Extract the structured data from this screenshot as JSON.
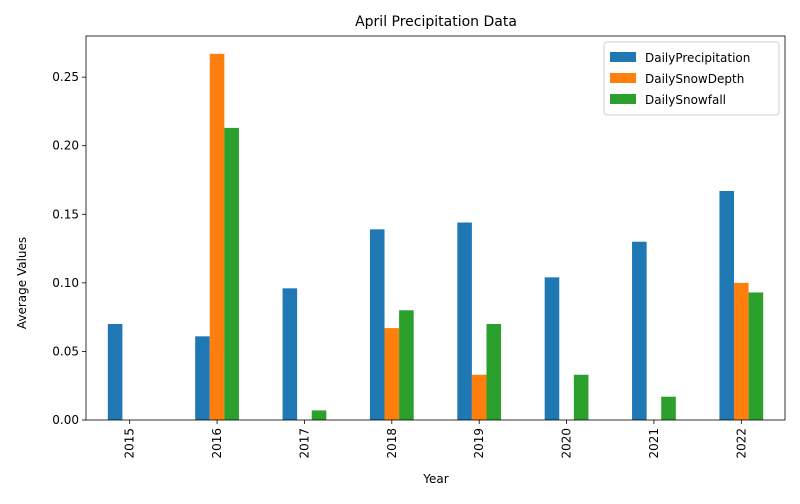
{
  "chart_data": {
    "type": "bar",
    "title": "April Precipitation Data",
    "xlabel": "Year",
    "ylabel": "Average Values",
    "categories": [
      "2015",
      "2016",
      "2017",
      "2018",
      "2019",
      "2020",
      "2021",
      "2022"
    ],
    "series": [
      {
        "name": "DailyPrecipitation",
        "color": "#1f77b4",
        "values": [
          0.07,
          0.061,
          0.096,
          0.139,
          0.144,
          0.104,
          0.13,
          0.167
        ]
      },
      {
        "name": "DailySnowDepth",
        "color": "#ff7f0e",
        "values": [
          0.0,
          0.267,
          0.0,
          0.067,
          0.033,
          0.0,
          0.0,
          0.1
        ]
      },
      {
        "name": "DailySnowfall",
        "color": "#2ca02c",
        "values": [
          0.0,
          0.213,
          0.007,
          0.08,
          0.07,
          0.033,
          0.017,
          0.093
        ]
      }
    ],
    "ylim": [
      0,
      0.28
    ],
    "yticks": [
      "0.00",
      "0.05",
      "0.10",
      "0.15",
      "0.20",
      "0.25"
    ],
    "legend_position": "top-right",
    "grid": false
  }
}
